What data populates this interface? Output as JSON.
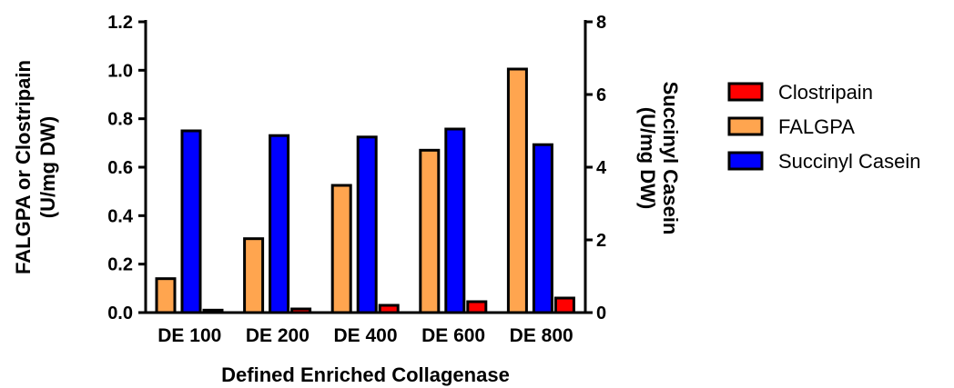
{
  "chart_data": {
    "type": "bar",
    "xlabel": "Defined Enriched Collagenase",
    "ylabel_left": [
      "FALGPA or Clostripain",
      "(U/mg DW)"
    ],
    "ylabel_right": [
      "Succinyl Casein",
      "(U/mg DW)"
    ],
    "categories": [
      "DE 100",
      "DE 200",
      "DE 400",
      "DE 600",
      "DE 800"
    ],
    "ylim_left": [
      0,
      1.2
    ],
    "ylim_right": [
      0,
      8
    ],
    "yticks_left": [
      "0.0",
      "0.2",
      "0.4",
      "0.6",
      "0.8",
      "1.0",
      "1.2"
    ],
    "yticks_right": [
      "0",
      "2",
      "4",
      "6",
      "8"
    ],
    "legend_position": "right",
    "series": [
      {
        "name": "Clostripain",
        "axis": "left",
        "color": "#ff0000",
        "values": [
          0.01,
          0.015,
          0.03,
          0.045,
          0.06
        ]
      },
      {
        "name": "FALGPA",
        "axis": "left",
        "color": "#ffa54f",
        "values": [
          0.14,
          0.305,
          0.525,
          0.67,
          1.005
        ]
      },
      {
        "name": "Succinyl Casein",
        "axis": "right",
        "color": "#0000ff",
        "values": [
          5.0,
          4.87,
          4.83,
          5.05,
          4.62
        ]
      }
    ],
    "bar_order": [
      "FALGPA",
      "Succinyl Casein",
      "Clostripain"
    ]
  }
}
